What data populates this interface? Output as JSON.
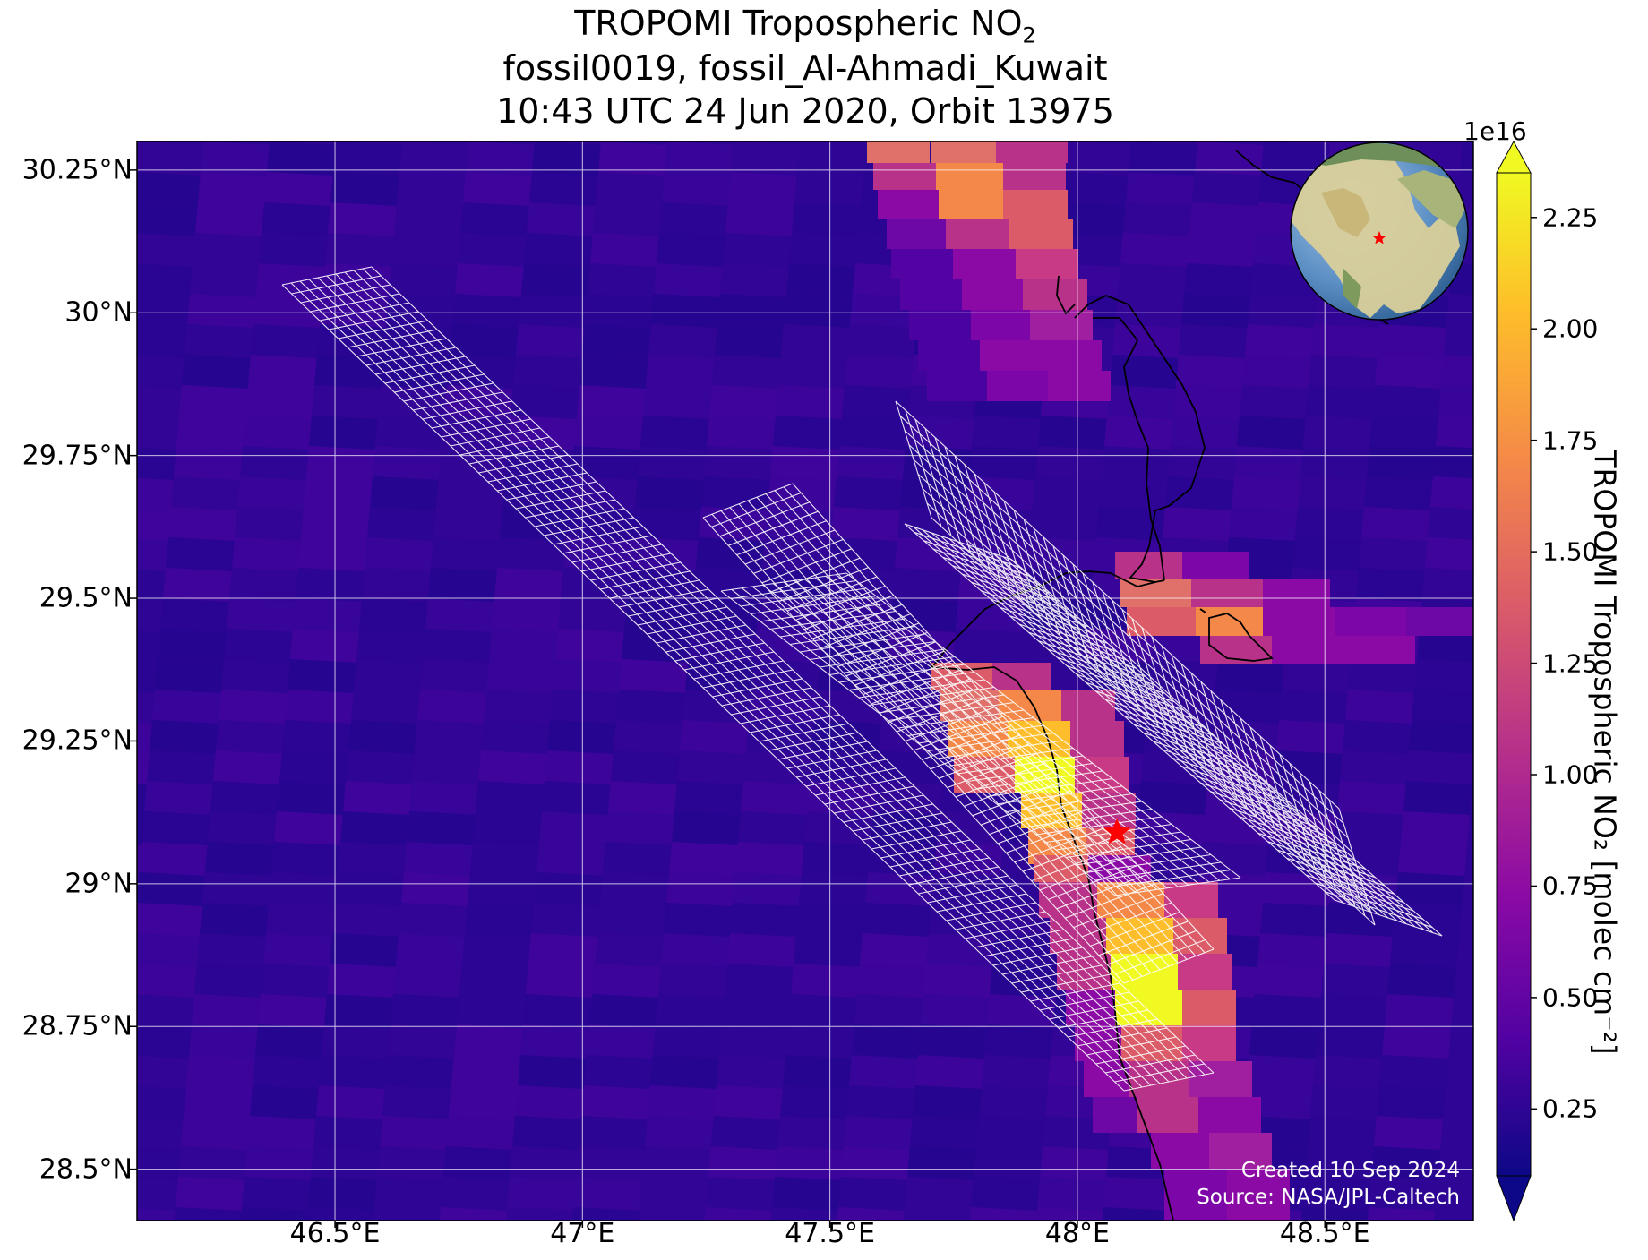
{
  "title": {
    "line1_prefix": "TROPOMI Tropospheric NO",
    "line1_sub": "2",
    "line2": "fossil0019, fossil_Al-Ahmadi_Kuwait",
    "line3": "10:43 UTC 24 Jun 2020, Orbit 13975"
  },
  "axes": {
    "lon_ticks": [
      "46.5°E",
      "47°E",
      "47.5°E",
      "48°E",
      "48.5°E"
    ],
    "lat_ticks": [
      "30.25°N",
      "30°N",
      "29.75°N",
      "29.5°N",
      "29.25°N",
      "29°N",
      "28.75°N",
      "28.5°N"
    ],
    "lon_range": [
      46.1,
      48.8
    ],
    "lat_range": [
      28.41,
      30.3
    ]
  },
  "colorbar": {
    "exponent": "1e16",
    "ticks": [
      "2.25",
      "2.00",
      "1.75",
      "1.50",
      "1.25",
      "1.00",
      "0.75",
      "0.50",
      "0.25"
    ],
    "label": "TROPOMI Tropospheric NO₂ [molec cm⁻²]",
    "colormap": "plasma",
    "colors": [
      "#0d0887",
      "#5302a3",
      "#8b0aa5",
      "#b83289",
      "#db5c68",
      "#f48849",
      "#febd2a",
      "#f0f921"
    ]
  },
  "markers": {
    "source_star": {
      "lon": 48.08,
      "lat": 29.09,
      "color": "#ff0000"
    }
  },
  "inset": {
    "type": "globe",
    "star_color": "#ff0000"
  },
  "credits": {
    "created": "Created 10 Sep 2024",
    "source": "Source: NASA/JPL-Caltech"
  }
}
